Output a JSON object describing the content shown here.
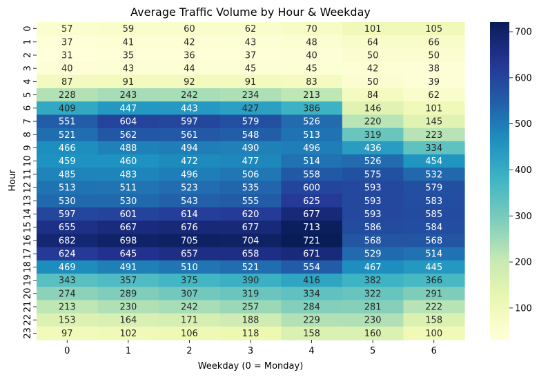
{
  "chart_data": {
    "type": "heatmap",
    "title": "Average Traffic Volume by Hour & Weekday",
    "xlabel": "Weekday (0 = Monday)",
    "ylabel": "Hour",
    "x_categories": [
      "0",
      "1",
      "2",
      "3",
      "4",
      "5",
      "6"
    ],
    "y_categories": [
      "0",
      "1",
      "2",
      "3",
      "4",
      "5",
      "6",
      "7",
      "8",
      "9",
      "10",
      "11",
      "12",
      "13",
      "14",
      "15",
      "16",
      "17",
      "18",
      "19",
      "20",
      "21",
      "22",
      "23"
    ],
    "values": [
      [
        57,
        59,
        60,
        62,
        70,
        101,
        105
      ],
      [
        37,
        41,
        42,
        43,
        48,
        64,
        66
      ],
      [
        31,
        35,
        36,
        37,
        40,
        50,
        50
      ],
      [
        40,
        43,
        44,
        45,
        45,
        42,
        38
      ],
      [
        87,
        91,
        92,
        91,
        83,
        50,
        39
      ],
      [
        228,
        243,
        242,
        234,
        213,
        84,
        62
      ],
      [
        409,
        447,
        443,
        427,
        386,
        146,
        101
      ],
      [
        551,
        604,
        597,
        579,
        526,
        220,
        145
      ],
      [
        521,
        562,
        561,
        548,
        513,
        319,
        223
      ],
      [
        466,
        488,
        494,
        490,
        496,
        436,
        334
      ],
      [
        459,
        460,
        472,
        477,
        514,
        526,
        454
      ],
      [
        485,
        483,
        496,
        506,
        558,
        575,
        532
      ],
      [
        513,
        511,
        523,
        535,
        600,
        593,
        579
      ],
      [
        530,
        530,
        543,
        555,
        625,
        593,
        583
      ],
      [
        597,
        601,
        614,
        620,
        677,
        593,
        585
      ],
      [
        655,
        667,
        676,
        677,
        713,
        586,
        584
      ],
      [
        682,
        698,
        705,
        704,
        721,
        568,
        568
      ],
      [
        624,
        645,
        657,
        658,
        671,
        529,
        514
      ],
      [
        469,
        491,
        510,
        521,
        554,
        467,
        445
      ],
      [
        343,
        357,
        375,
        390,
        416,
        382,
        366
      ],
      [
        274,
        289,
        307,
        319,
        334,
        322,
        291
      ],
      [
        213,
        230,
        242,
        257,
        284,
        281,
        222
      ],
      [
        153,
        164,
        171,
        188,
        229,
        230,
        158
      ],
      [
        97,
        102,
        106,
        118,
        158,
        160,
        100
      ]
    ],
    "colormap": "YlGnBu",
    "vmin": 31,
    "vmax": 721,
    "colorbar_ticks": [
      100,
      200,
      300,
      400,
      500,
      600,
      700
    ],
    "annotated": true
  }
}
